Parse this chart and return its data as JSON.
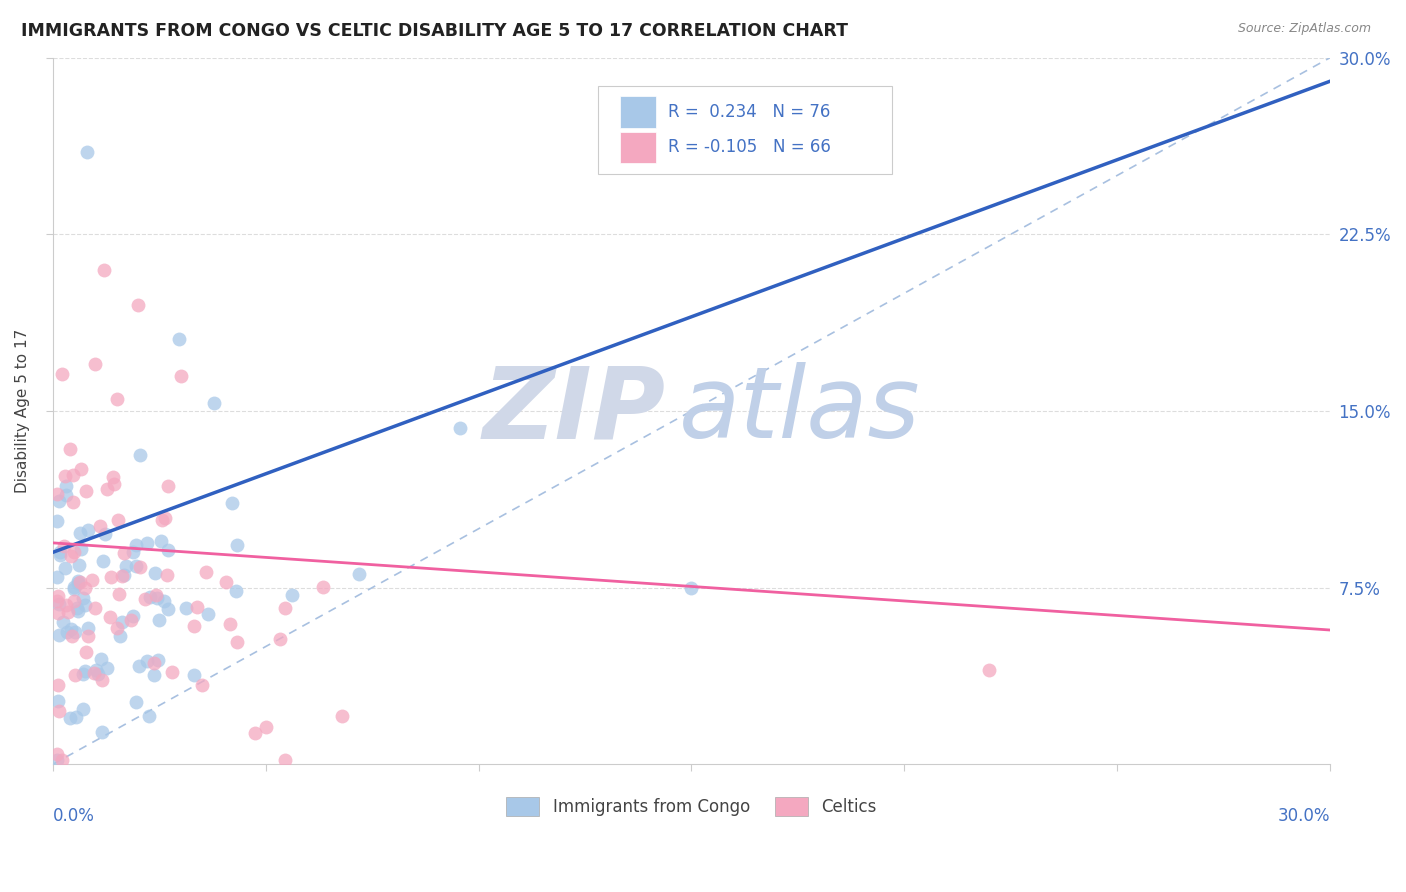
{
  "title": "IMMIGRANTS FROM CONGO VS CELTIC DISABILITY AGE 5 TO 17 CORRELATION CHART",
  "source": "Source: ZipAtlas.com",
  "ylabel": "Disability Age 5 to 17",
  "ytick_labels": [
    "7.5%",
    "15.0%",
    "22.5%",
    "30.0%"
  ],
  "ytick_vals": [
    0.075,
    0.15,
    0.225,
    0.3
  ],
  "xlim": [
    0.0,
    0.3
  ],
  "ylim": [
    0.0,
    0.3
  ],
  "legend_r1": "R =  0.234",
  "legend_n1": "N = 76",
  "legend_r2": "R = -0.105",
  "legend_n2": "N = 66",
  "color_blue": "#A8C8E8",
  "color_pink": "#F4A8C0",
  "color_blue_line": "#3060C0",
  "color_pink_line": "#F060A0",
  "color_diag_line": "#A8C0E0",
  "blue_line_x": [
    0.0,
    0.3
  ],
  "blue_line_y": [
    0.09,
    0.29
  ],
  "pink_line_x": [
    0.0,
    0.3
  ],
  "pink_line_y": [
    0.094,
    0.057
  ],
  "diag_line_x": [
    0.0,
    0.3
  ],
  "diag_line_y": [
    0.0,
    0.3
  ],
  "watermark_zip_color": "#D0D8E8",
  "watermark_atlas_color": "#C0D0E8"
}
